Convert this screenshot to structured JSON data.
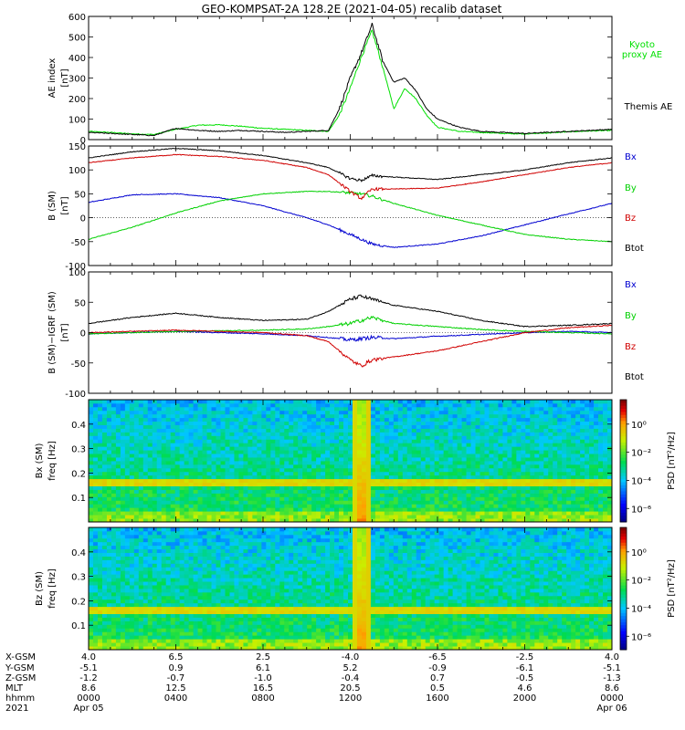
{
  "title": "GEO-KOMPSAT-2A 128.2E (2021-04-05) recalib dataset",
  "chart_data": [
    {
      "type": "line",
      "panel": "ae-index",
      "ylabel_lines": [
        "AE index",
        "[nT]"
      ],
      "ylim": [
        0,
        600
      ],
      "yticks": [
        "0",
        "100",
        "200",
        "300",
        "400",
        "500",
        "600"
      ],
      "x_hours": [
        0,
        1,
        2,
        3,
        4,
        5,
        6,
        7,
        8,
        9,
        10,
        11,
        11.5,
        12,
        12.5,
        13,
        13.5,
        14,
        14.5,
        15,
        15.5,
        16,
        17,
        18,
        19,
        20,
        21,
        22,
        23,
        24
      ],
      "series": [
        {
          "name": "Kyoto proxy AE",
          "color": "#00e000",
          "values": [
            40,
            35,
            28,
            25,
            50,
            70,
            72,
            65,
            55,
            50,
            45,
            40,
            120,
            250,
            400,
            530,
            350,
            150,
            250,
            200,
            120,
            60,
            40,
            35,
            30,
            28,
            32,
            38,
            42,
            45
          ]
        },
        {
          "name": "Themis AE",
          "color": "#000000",
          "values": [
            35,
            30,
            25,
            20,
            55,
            45,
            40,
            45,
            40,
            35,
            40,
            45,
            150,
            300,
            420,
            560,
            380,
            280,
            300,
            240,
            150,
            100,
            60,
            40,
            35,
            30,
            35,
            40,
            45,
            50
          ]
        }
      ],
      "legend": [
        "Kyoto",
        "proxy AE",
        "Themis AE"
      ]
    },
    {
      "type": "line",
      "panel": "b-sm",
      "ylabel_lines": [
        "B (SM)",
        "[nT]"
      ],
      "ylim": [
        -100,
        150
      ],
      "yticks": [
        "-100",
        "-50",
        "0",
        "50",
        "100",
        "150"
      ],
      "x_hours": [
        0,
        2,
        4,
        6,
        8,
        10,
        11,
        12,
        12.5,
        13,
        14,
        16,
        18,
        20,
        22,
        24
      ],
      "series": [
        {
          "name": "Bx",
          "color": "#0000d0",
          "values": [
            32,
            48,
            50,
            42,
            25,
            0,
            -15,
            -35,
            -45,
            -55,
            -62,
            -55,
            -38,
            -15,
            8,
            30
          ]
        },
        {
          "name": "By",
          "color": "#00d000",
          "values": [
            -45,
            -20,
            10,
            35,
            50,
            55,
            55,
            52,
            50,
            45,
            30,
            5,
            -15,
            -35,
            -45,
            -50
          ]
        },
        {
          "name": "Bz",
          "color": "#d00000",
          "values": [
            115,
            125,
            132,
            128,
            120,
            105,
            90,
            55,
            40,
            60,
            60,
            62,
            75,
            90,
            105,
            115
          ]
        },
        {
          "name": "Btot",
          "color": "#000000",
          "values": [
            125,
            138,
            145,
            140,
            130,
            115,
            105,
            82,
            78,
            88,
            85,
            80,
            90,
            100,
            115,
            125
          ]
        }
      ],
      "legend": [
        "Bx",
        "By",
        "Bz",
        "Btot"
      ]
    },
    {
      "type": "line",
      "panel": "b-minus-igrf",
      "ylabel_lines": [
        "B (SM)−IGRF (SM)",
        "[nT]"
      ],
      "ylim": [
        -100,
        100
      ],
      "yticks": [
        "-100",
        "-50",
        "0",
        "50",
        "100"
      ],
      "x_hours": [
        0,
        2,
        4,
        6,
        8,
        10,
        11,
        12,
        12.5,
        13,
        14,
        16,
        18,
        20,
        22,
        24
      ],
      "series": [
        {
          "name": "Bx",
          "color": "#0000d0",
          "values": [
            -2,
            0,
            2,
            0,
            -2,
            -5,
            -8,
            -12,
            -10,
            -8,
            -10,
            -6,
            -3,
            0,
            2,
            0
          ]
        },
        {
          "name": "By",
          "color": "#00d000",
          "values": [
            -2,
            0,
            2,
            3,
            4,
            6,
            10,
            15,
            20,
            25,
            15,
            10,
            5,
            2,
            0,
            -2
          ]
        },
        {
          "name": "Bz",
          "color": "#d00000",
          "values": [
            0,
            2,
            4,
            2,
            0,
            -5,
            -15,
            -45,
            -55,
            -45,
            -40,
            -30,
            -15,
            0,
            8,
            12
          ]
        },
        {
          "name": "Btot",
          "color": "#000000",
          "values": [
            15,
            25,
            32,
            25,
            20,
            22,
            35,
            55,
            60,
            55,
            45,
            35,
            20,
            10,
            12,
            15
          ]
        }
      ],
      "legend": [
        "Bx",
        "By",
        "Bz",
        "Btot"
      ]
    },
    {
      "type": "heatmap",
      "panel": "spectrogram-bx",
      "ylabel_lines": [
        "Bx (SM)",
        "freq [Hz]"
      ],
      "ylim": [
        0,
        0.5
      ],
      "yticks": [
        "0.1",
        "0.2",
        "0.3",
        "0.4"
      ],
      "colorbar_label": "PSD [nT²/Hz]",
      "colorbar_ticks": [
        "10⁰",
        "10⁻²",
        "10⁻⁴",
        "10⁻⁶"
      ],
      "band_frequencies_hz": [
        0.155,
        0.165
      ],
      "broadband_hours": [
        12.0,
        13.0
      ]
    },
    {
      "type": "heatmap",
      "panel": "spectrogram-bz",
      "ylabel_lines": [
        "Bz (SM)",
        "freq [Hz]"
      ],
      "ylim": [
        0,
        0.5
      ],
      "yticks": [
        "0.1",
        "0.2",
        "0.3",
        "0.4"
      ],
      "colorbar_label": "PSD [nT²/Hz]",
      "colorbar_ticks": [
        "10⁰",
        "10⁻²",
        "10⁻⁴",
        "10⁻⁶"
      ],
      "band_frequencies_hz": [
        0.155,
        0.165
      ],
      "broadband_hours": [
        12.0,
        13.0
      ]
    }
  ],
  "xaxis": {
    "row_labels": [
      "X-GSM",
      "Y-GSM",
      "Z-GSM",
      "MLT",
      "hhmm",
      "2021"
    ],
    "columns": [
      {
        "hour": 0,
        "values": [
          "4.0",
          "-5.1",
          "-1.2",
          "8.6",
          "0000",
          "Apr 05"
        ]
      },
      {
        "hour": 4,
        "values": [
          "6.5",
          "0.9",
          "-0.7",
          "12.5",
          "0400",
          ""
        ]
      },
      {
        "hour": 8,
        "values": [
          "2.5",
          "6.1",
          "-1.0",
          "16.5",
          "0800",
          ""
        ]
      },
      {
        "hour": 12,
        "values": [
          "-4.0",
          "5.2",
          "-0.4",
          "20.5",
          "1200",
          ""
        ]
      },
      {
        "hour": 16,
        "values": [
          "-6.5",
          "-0.9",
          "0.7",
          "0.5",
          "1600",
          ""
        ]
      },
      {
        "hour": 20,
        "values": [
          "-2.5",
          "-6.1",
          "-0.5",
          "4.6",
          "2000",
          ""
        ]
      },
      {
        "hour": 24,
        "values": [
          "4.0",
          "-5.1",
          "-1.3",
          "8.6",
          "0000",
          "Apr 06"
        ]
      }
    ]
  }
}
